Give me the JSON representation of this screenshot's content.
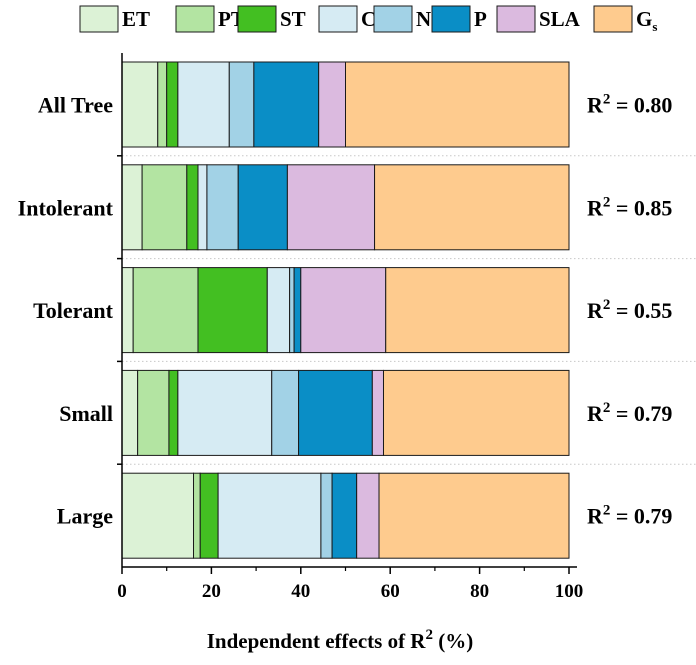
{
  "chart_data": {
    "type": "bar",
    "orientation": "horizontal",
    "stacked": true,
    "categories": [
      "All Tree",
      "Intolerant",
      "Tolerant",
      "Small",
      "Large"
    ],
    "series": [
      {
        "name": "ET",
        "label_main": "ET",
        "label_sub": "",
        "color": "#dcf2d6",
        "values": [
          8.0,
          4.5,
          2.5,
          3.5,
          16.0
        ]
      },
      {
        "name": "PT",
        "label_main": "PT",
        "label_sub": "",
        "color": "#b3e4a2",
        "values": [
          2.0,
          10.0,
          14.5,
          7.0,
          1.5
        ]
      },
      {
        "name": "ST",
        "label_main": "ST",
        "label_sub": "",
        "color": "#43bf22",
        "values": [
          2.5,
          2.5,
          15.5,
          2.0,
          4.0
        ]
      },
      {
        "name": "C",
        "label_main": "C",
        "label_sub": "",
        "color": "#d6ebf3",
        "values": [
          11.5,
          2.0,
          5.0,
          21.0,
          23.0
        ]
      },
      {
        "name": "N",
        "label_main": "N",
        "label_sub": "",
        "color": "#a2d2e6",
        "values": [
          5.5,
          7.0,
          1.0,
          6.0,
          2.5
        ]
      },
      {
        "name": "P",
        "label_main": "P",
        "label_sub": "",
        "color": "#0a8ec6",
        "values": [
          14.5,
          11.0,
          1.5,
          16.5,
          5.5
        ]
      },
      {
        "name": "SLA",
        "label_main": "SLA",
        "label_sub": "",
        "color": "#dbbadf",
        "values": [
          6.0,
          19.5,
          19.0,
          2.5,
          5.0
        ]
      },
      {
        "name": "Gs",
        "label_main": "G",
        "label_sub": "s",
        "color": "#fecb8e",
        "values": [
          50.0,
          43.5,
          41.0,
          41.5,
          42.5
        ]
      }
    ],
    "r2_labels": [
      {
        "prefix": "R",
        "sup": "2",
        "suffix": " = 0.80"
      },
      {
        "prefix": "R",
        "sup": "2",
        "suffix": " = 0.85"
      },
      {
        "prefix": "R",
        "sup": "2",
        "suffix": " = 0.55"
      },
      {
        "prefix": "R",
        "sup": "2",
        "suffix": " = 0.79"
      },
      {
        "prefix": "R",
        "sup": "2",
        "suffix": " = 0.79"
      }
    ],
    "xlabel": {
      "main": "Independent effects of R",
      "sup": "2",
      "suffix": " (%)"
    },
    "xlim": [
      0,
      100
    ],
    "xticks": [
      0,
      20,
      40,
      60,
      80,
      100
    ],
    "legend_position": "top",
    "grid": false,
    "row_separators": "dotted"
  }
}
